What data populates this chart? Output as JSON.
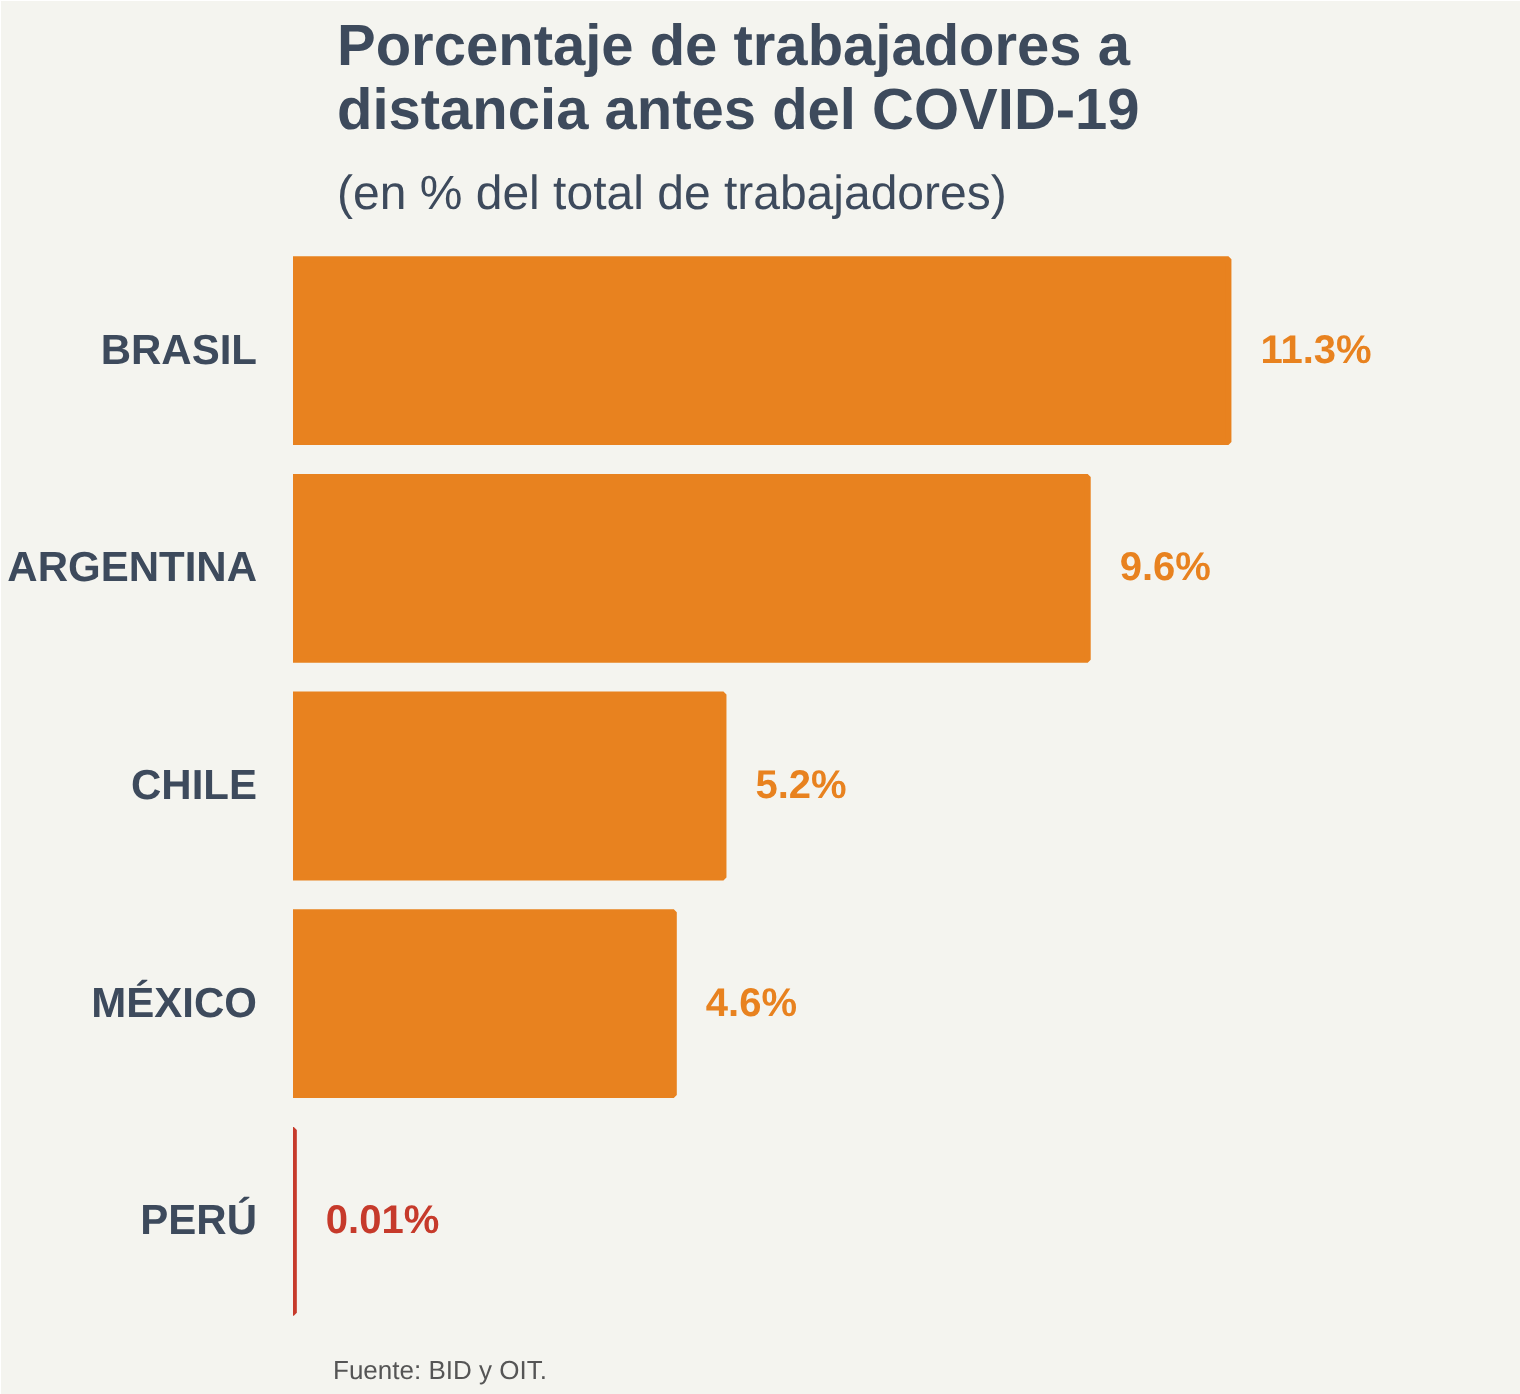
{
  "chart_data": {
    "type": "bar",
    "orientation": "horizontal",
    "title": "Porcentaje de trabajadores a distancia antes del COVID-19",
    "subtitle": "(en % del total de trabajadores)",
    "categories": [
      "BRASIL",
      "ARGENTINA",
      "CHILE",
      "MÉXICO",
      "PERÚ"
    ],
    "values": [
      11.3,
      9.6,
      5.2,
      4.6,
      0.01
    ],
    "colors": [
      "#e8821f",
      "#e8821f",
      "#e8821f",
      "#e8821f",
      "#c63a2b"
    ],
    "value_labels": [
      "11.3%",
      "9.6%",
      "5.2%",
      "4.6%",
      "0.01%"
    ],
    "annotations": [
      "Fuente: BID y OIT."
    ],
    "tick_labels": "y",
    "grid": false
  }
}
